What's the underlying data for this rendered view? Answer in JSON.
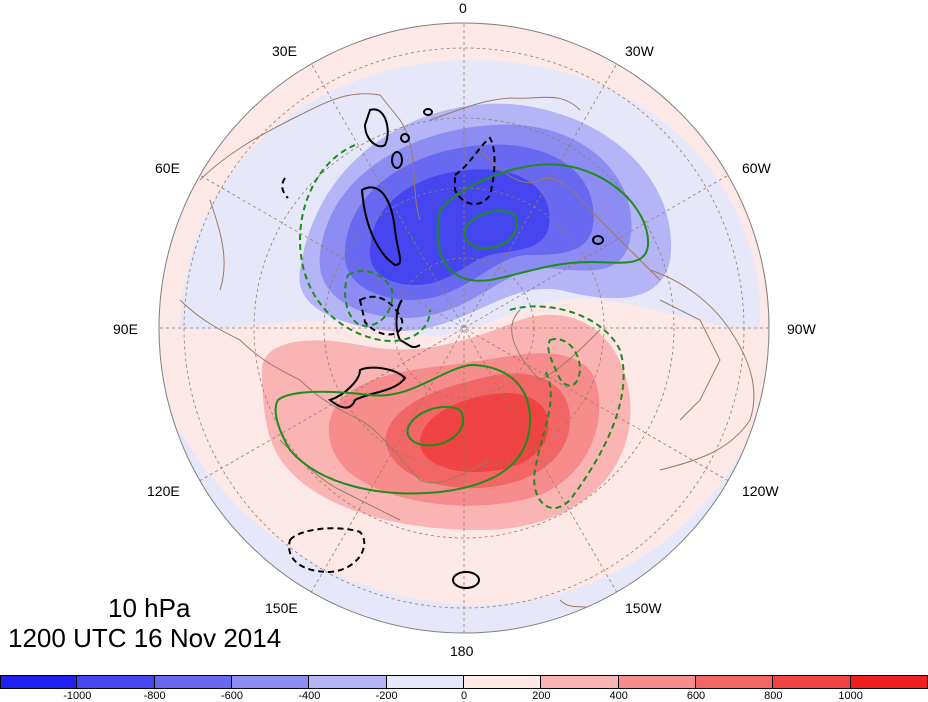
{
  "title": {
    "level": "10 hPa",
    "time": "1200 UTC 16 Nov 2014"
  },
  "longitude_labels": [
    {
      "text": "0",
      "name": "lon-label-0"
    },
    {
      "text": "30W",
      "name": "lon-label-30w"
    },
    {
      "text": "60W",
      "name": "lon-label-60w"
    },
    {
      "text": "90W",
      "name": "lon-label-90w"
    },
    {
      "text": "120W",
      "name": "lon-label-120w"
    },
    {
      "text": "150W",
      "name": "lon-label-150w"
    },
    {
      "text": "180",
      "name": "lon-label-180"
    },
    {
      "text": "150E",
      "name": "lon-label-150e"
    },
    {
      "text": "120E",
      "name": "lon-label-120e"
    },
    {
      "text": "90E",
      "name": "lon-label-90e"
    },
    {
      "text": "60E",
      "name": "lon-label-60e"
    },
    {
      "text": "30E",
      "name": "lon-label-30e"
    }
  ],
  "colorbar": {
    "colors": [
      "#2020f0",
      "#4646f0",
      "#6868f0",
      "#8c8cf2",
      "#b4b4f6",
      "#e6e8fa",
      "#fde8e8",
      "#fab4b4",
      "#f68c8c",
      "#f26666",
      "#f04444",
      "#f01e1e"
    ],
    "ticks": [
      "-1000",
      "-800",
      "-600",
      "-400",
      "-200",
      "0",
      "200",
      "400",
      "600",
      "800",
      "1000"
    ]
  },
  "colors": {
    "negative_contour": "#000000",
    "positive_contour": "#1e8c1e",
    "coastline": "#9b7b62",
    "grid": "#9b7b62"
  }
}
